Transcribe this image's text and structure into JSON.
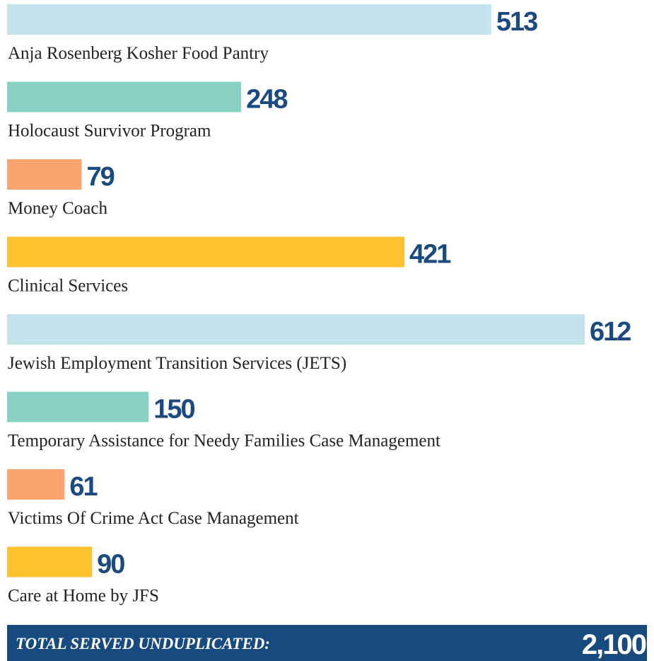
{
  "chart_data": {
    "type": "bar",
    "categories": [
      "Anja Rosenberg Kosher Food Pantry",
      "Holocaust Survivor Program",
      "Money Coach",
      "Clinical Services",
      "Jewish Employment Transition Services (JETS)",
      "Temporary Assistance for Needy Families Case Management",
      "Victims Of Crime Act Case Management",
      "Care at Home by JFS"
    ],
    "values": [
      513,
      248,
      79,
      421,
      612,
      150,
      61,
      90
    ],
    "colors": [
      "#c3e3ed",
      "#89d1c4",
      "#fba46f",
      "#fdc22c",
      "#c3e3ed",
      "#89d1c4",
      "#fba46f",
      "#fdc22c"
    ],
    "total_label": "TOTAL SERVED UNDUPLICATED:",
    "total": "2,100"
  }
}
